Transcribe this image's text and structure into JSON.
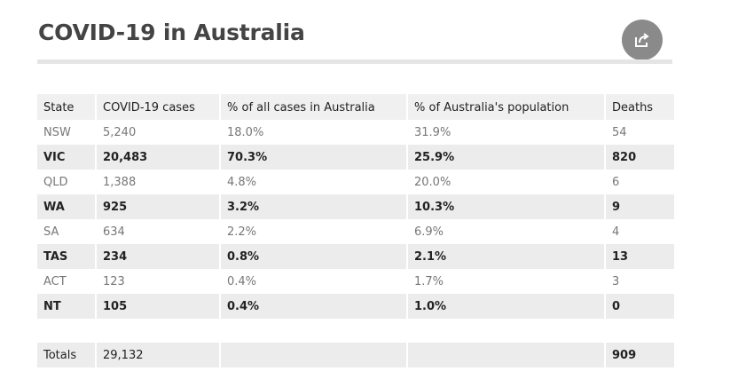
{
  "title": "COVID-19 in Australia",
  "share_icon": "share-icon",
  "table": {
    "headers": [
      "State",
      "COVID-19 cases",
      "% of all cases in Australia",
      "% of Australia's population",
      "Deaths"
    ],
    "rows": [
      [
        "NSW",
        "5,240",
        "18.0%",
        "31.9%",
        "54"
      ],
      [
        "VIC",
        "20,483",
        "70.3%",
        "25.9%",
        "820"
      ],
      [
        "QLD",
        "1,388",
        "4.8%",
        "20.0%",
        "6"
      ],
      [
        "WA",
        "925",
        "3.2%",
        "10.3%",
        "9"
      ],
      [
        "SA",
        "634",
        "2.2%",
        "6.9%",
        "4"
      ],
      [
        "TAS",
        "234",
        "0.8%",
        "2.1%",
        "13"
      ],
      [
        "ACT",
        "123",
        "0.4%",
        "1.7%",
        "3"
      ],
      [
        "NT",
        "105",
        "0.4%",
        "1.0%",
        "0"
      ]
    ],
    "totals": [
      "Totals",
      "29,132",
      "",
      "",
      "909"
    ]
  },
  "colors": {
    "title": "#444444",
    "share_button": "#8a8a8a",
    "stripe": "#ececec",
    "header_bg": "#f0f0f0"
  }
}
